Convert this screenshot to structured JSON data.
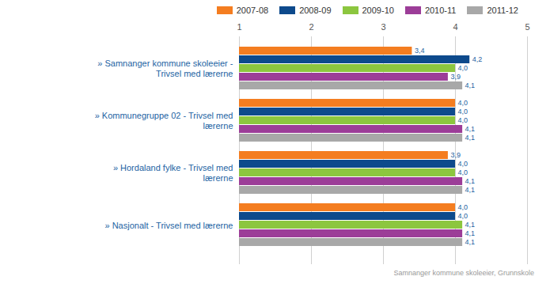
{
  "chart_data": {
    "type": "bar",
    "orientation": "horizontal",
    "categories": [
      "» Samnanger kommune skoleeier - Trivsel med lærerne",
      "» Kommunegruppe 02 - Trivsel med lærerne",
      "» Hordaland fylke - Trivsel med lærerne",
      "» Nasjonalt - Trivsel med lærerne"
    ],
    "series": [
      {
        "name": "2007-08",
        "color": "#f47d20",
        "values": [
          3.4,
          4.0,
          3.9,
          4.0
        ],
        "value_labels": [
          "3,4",
          "4,0",
          "3,9",
          "4,0"
        ]
      },
      {
        "name": "2008-09",
        "color": "#0d4a8c",
        "values": [
          4.2,
          4.0,
          4.0,
          4.0
        ],
        "value_labels": [
          "4,2",
          "4,0",
          "4,0",
          "4,0"
        ]
      },
      {
        "name": "2009-10",
        "color": "#8cc63f",
        "values": [
          4.0,
          4.0,
          4.0,
          4.1
        ],
        "value_labels": [
          "4,0",
          "4,0",
          "4,0",
          "4,1"
        ]
      },
      {
        "name": "2010-11",
        "color": "#9c3d98",
        "values": [
          3.9,
          4.1,
          4.1,
          4.1
        ],
        "value_labels": [
          "3,9",
          "4,1",
          "4,1",
          "4,1"
        ]
      },
      {
        "name": "2011-12",
        "color": "#a8a8a8",
        "values": [
          4.1,
          4.1,
          4.1,
          4.1
        ],
        "value_labels": [
          "4,1",
          "4,1",
          "4,1",
          "4,1"
        ]
      }
    ],
    "xlim": [
      1,
      5
    ],
    "xticks": [
      1,
      2,
      3,
      4,
      5
    ],
    "grid": true,
    "legend": "top-right",
    "data_labels": true,
    "caption": "Samnanger kommune skoleeier, Grunnskole"
  }
}
